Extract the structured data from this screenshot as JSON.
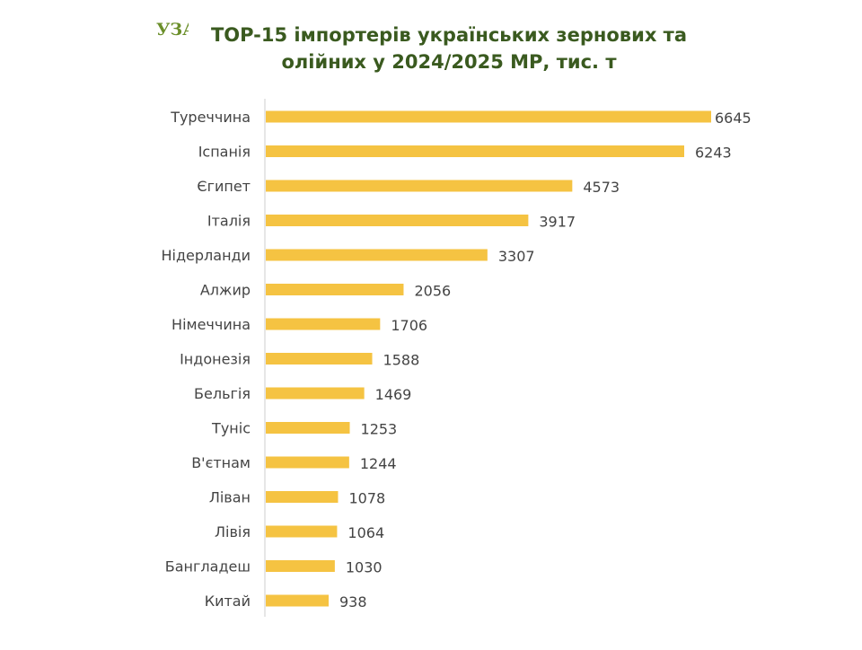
{
  "logo": {
    "text": "УЗА",
    "colors": {
      "letters": "#6b8f2a",
      "accent": "#c9d43a"
    }
  },
  "title": {
    "line1": "TOP-15 імпортерів українських зернових та",
    "line2": "олійних у 2024/2025 МР, тис. т"
  },
  "colors": {
    "bar": "#f5c342",
    "axis": "#cccccc",
    "title": "#3a5a1f",
    "text": "#444444"
  },
  "chart_data": {
    "type": "bar",
    "orientation": "horizontal",
    "title": "TOP-15 імпортерів українських зернових та олійних у 2024/2025 МР, тис. т",
    "categories": [
      "Туреччина",
      "Іспанія",
      "Єгипет",
      "Італія",
      "Нідерланди",
      "Алжир",
      "Німеччина",
      "Індонезія",
      "Бельгія",
      "Туніс",
      "В'єтнам",
      "Ліван",
      "Лівія",
      "Бангладеш",
      "Китай"
    ],
    "values": [
      6645,
      6243,
      4573,
      3917,
      3307,
      2056,
      1706,
      1588,
      1469,
      1253,
      1244,
      1078,
      1064,
      1030,
      938
    ],
    "xlim": [
      0,
      6645
    ],
    "grid": false,
    "legend": "none"
  }
}
